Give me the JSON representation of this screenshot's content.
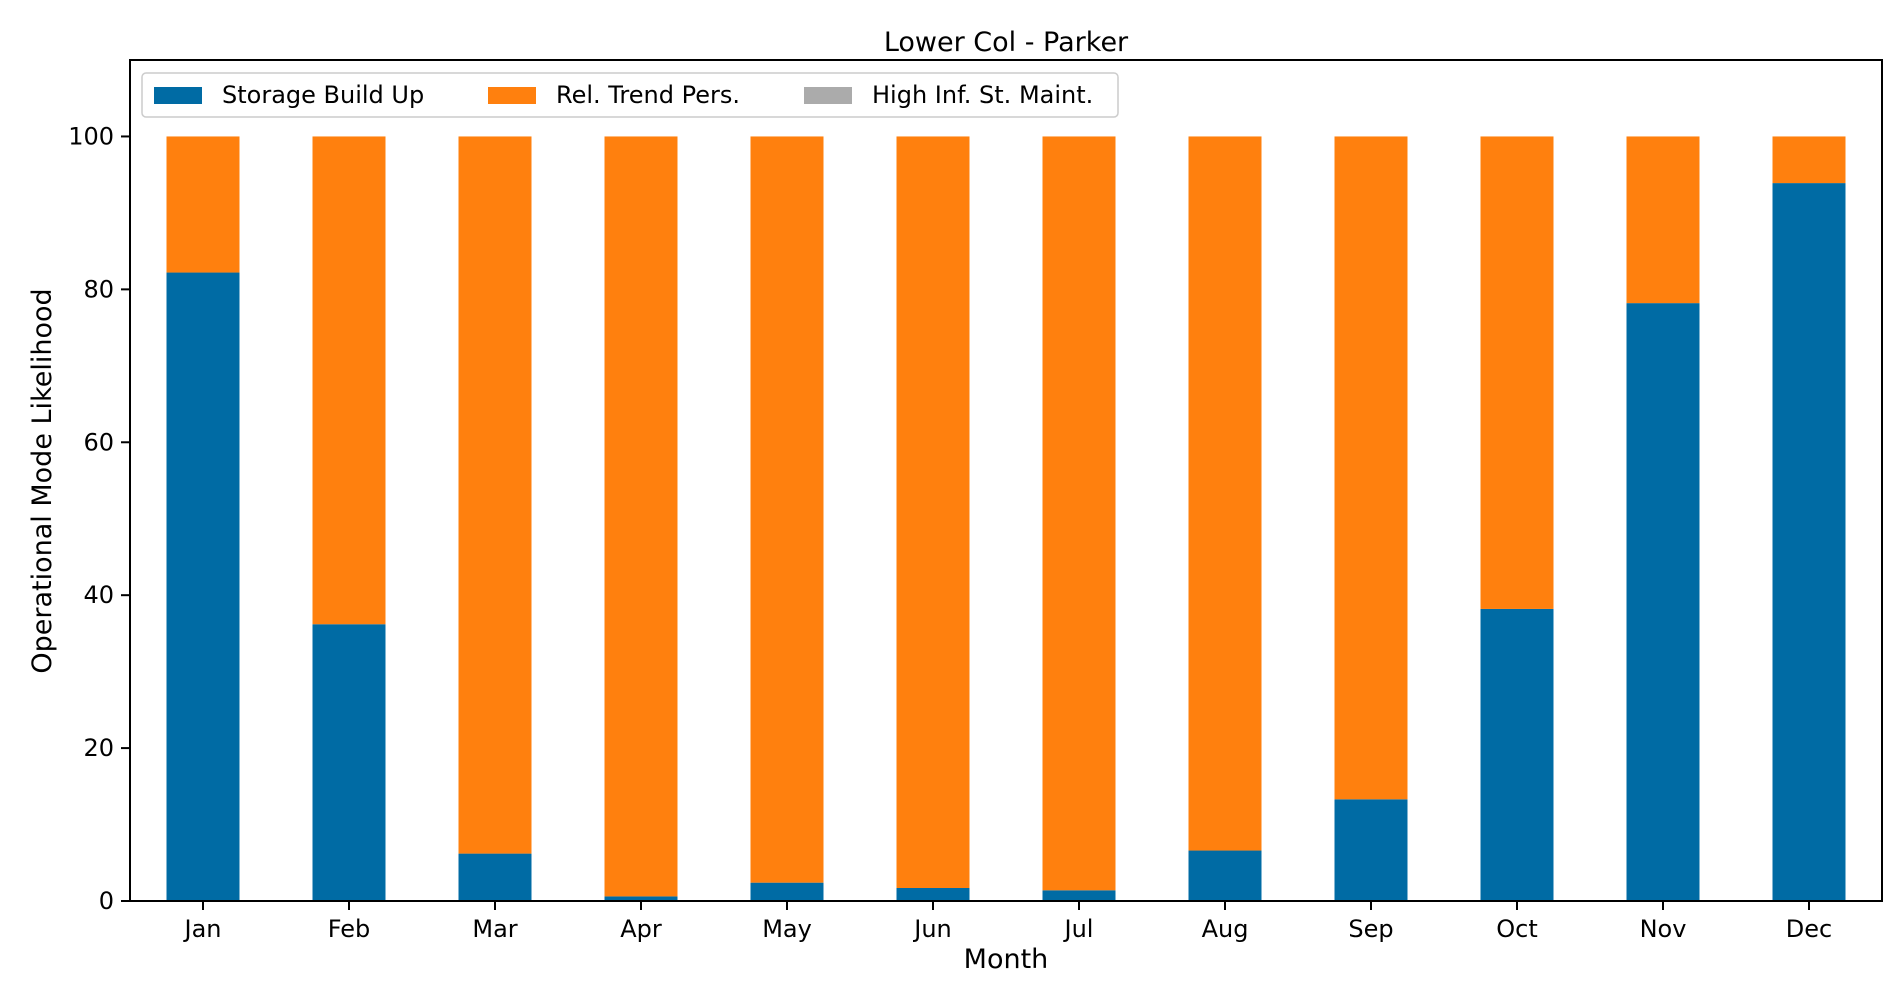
{
  "chart_data": {
    "type": "bar",
    "stacked": true,
    "title": "Lower Col - Parker",
    "xlabel": "Month",
    "ylabel": "Operational Mode Likelihood",
    "categories": [
      "Jan",
      "Feb",
      "Mar",
      "Apr",
      "May",
      "Jun",
      "Jul",
      "Aug",
      "Sep",
      "Oct",
      "Nov",
      "Dec"
    ],
    "ylim": [
      0,
      110
    ],
    "yticks": [
      0,
      20,
      40,
      60,
      80,
      100
    ],
    "grid": false,
    "legend_position": "top-left",
    "series": [
      {
        "name": "Storage Build Up",
        "color": "#006BA4",
        "values": [
          82.2,
          36.2,
          6.2,
          0.6,
          2.4,
          1.7,
          1.4,
          6.6,
          13.3,
          38.2,
          78.2,
          93.9
        ]
      },
      {
        "name": "Rel. Trend Pers.",
        "color": "#FF800E",
        "values": [
          17.8,
          63.8,
          93.8,
          99.4,
          97.6,
          98.3,
          98.6,
          93.4,
          86.7,
          61.8,
          21.8,
          6.1
        ]
      },
      {
        "name": "High Inf. St. Maint.",
        "color": "#ABABAB",
        "values": [
          0,
          0,
          0,
          0,
          0,
          0,
          0,
          0,
          0,
          0,
          0,
          0
        ]
      }
    ]
  }
}
